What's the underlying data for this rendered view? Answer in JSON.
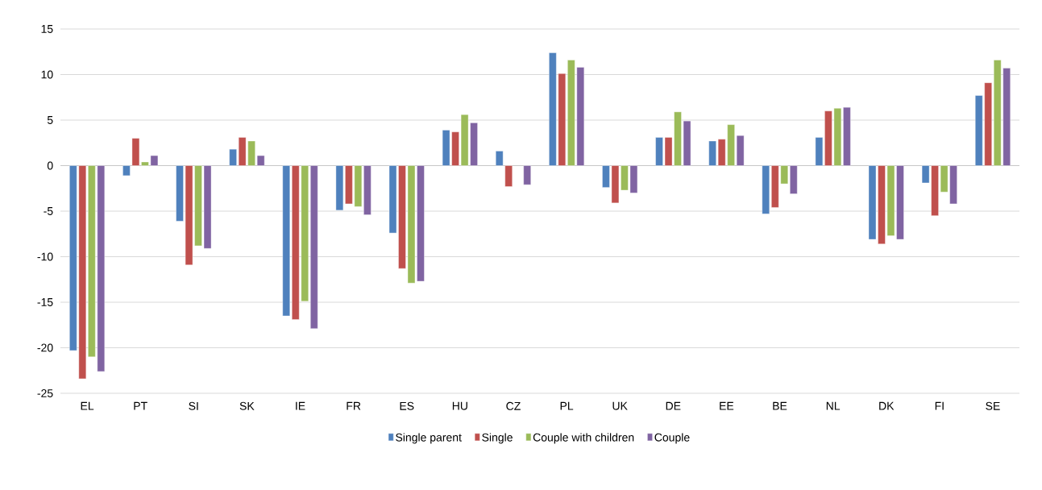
{
  "chart_data": {
    "type": "bar",
    "categories": [
      "EL",
      "PT",
      "SI",
      "SK",
      "IE",
      "FR",
      "ES",
      "HU",
      "CZ",
      "PL",
      "UK",
      "DE",
      "EE",
      "BE",
      "NL",
      "DK",
      "FI",
      "SE"
    ],
    "series": [
      {
        "name": "Single parent",
        "color": "#4f81bd",
        "values": [
          -20.3,
          -1.1,
          -6.1,
          1.8,
          -16.5,
          -4.9,
          -7.4,
          3.9,
          1.6,
          12.4,
          -2.4,
          3.1,
          2.7,
          -5.3,
          3.1,
          -8.1,
          -1.9,
          7.7
        ]
      },
      {
        "name": "Single",
        "color": "#c0504d",
        "values": [
          -23.4,
          3.0,
          -10.9,
          3.1,
          -16.9,
          -4.2,
          -11.3,
          3.7,
          -2.3,
          10.1,
          -4.1,
          3.1,
          2.9,
          -4.6,
          6.0,
          -8.6,
          -5.5,
          9.1
        ]
      },
      {
        "name": "Couple with children",
        "color": "#9bbb59",
        "values": [
          -21.0,
          0.4,
          -8.8,
          2.7,
          -14.9,
          -4.5,
          -12.9,
          5.6,
          null,
          11.6,
          -2.7,
          5.9,
          4.5,
          -2.0,
          6.3,
          -7.7,
          -2.9,
          11.6
        ]
      },
      {
        "name": "Couple",
        "color": "#8064a2",
        "values": [
          -22.6,
          1.1,
          -9.1,
          1.1,
          -17.9,
          -5.4,
          -12.7,
          4.7,
          -2.1,
          10.8,
          -3.0,
          4.9,
          3.3,
          -3.1,
          6.4,
          -8.1,
          -4.2,
          10.7
        ]
      }
    ],
    "ylim": [
      -25,
      15
    ],
    "yticks": [
      -25,
      -20,
      -15,
      -10,
      -5,
      0,
      5,
      10,
      15
    ],
    "grid": "y",
    "legend": "bottom"
  }
}
